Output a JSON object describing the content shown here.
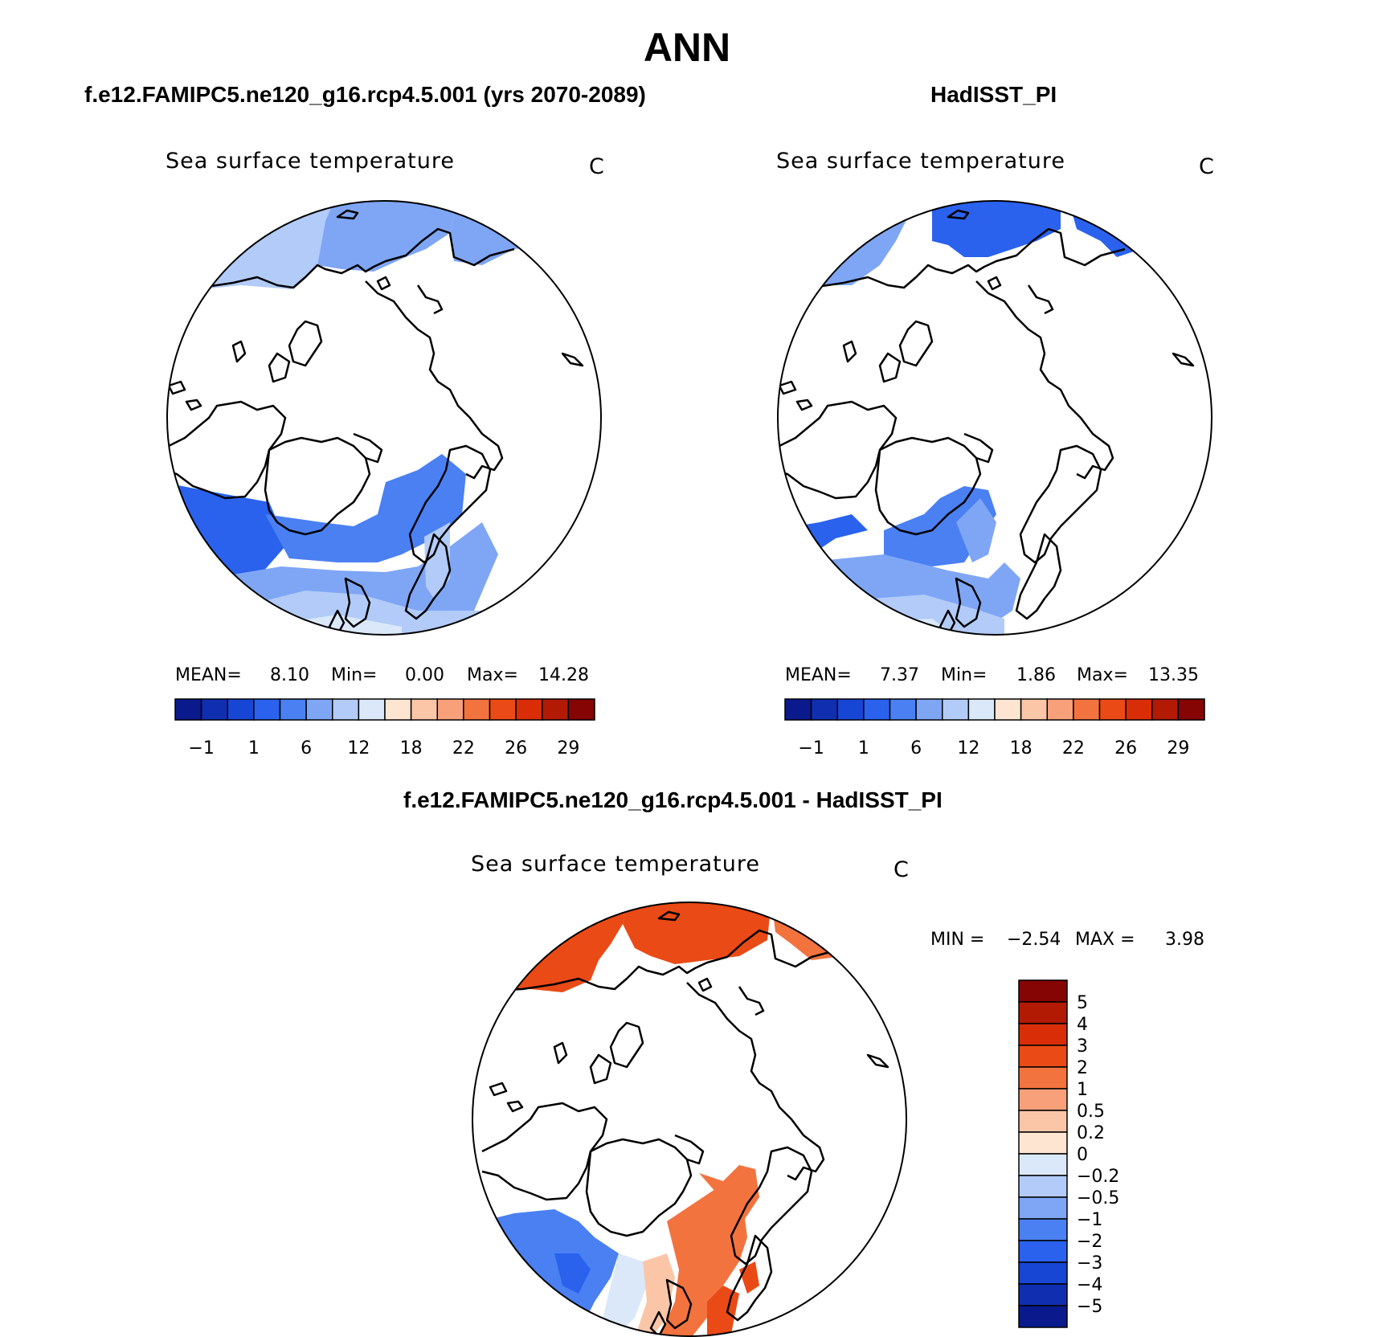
{
  "main_title": "ANN",
  "chart_data": [
    {
      "type": "heatmap",
      "title": "f.e12.FAMIPC5.ne120_g16.rcp4.5.001 (yrs 2070-2089)",
      "variable": "Sea surface temperature",
      "units": "C",
      "projection": "north polar stereographic",
      "stats": {
        "mean_label": "MEAN=",
        "mean": "8.10",
        "min_label": "Min=",
        "min": "0.00",
        "max_label": "Max=",
        "max": "14.28"
      },
      "colorbar": {
        "orientation": "horizontal",
        "tick_labels": [
          "−1",
          "1",
          "6",
          "12",
          "18",
          "22",
          "26",
          "29"
        ],
        "colors": [
          "#0a1a8c",
          "#0f2fb0",
          "#1746d4",
          "#2a62ee",
          "#4a80f2",
          "#7fa6f5",
          "#b2cbf8",
          "#dbe8fa",
          "#fde5d2",
          "#fbc6a7",
          "#f8a07a",
          "#f3733f",
          "#ea4a15",
          "#d82d06",
          "#b21a04",
          "#850404"
        ]
      }
    },
    {
      "type": "heatmap",
      "title": "HadISST_PI",
      "variable": "Sea surface temperature",
      "units": "C",
      "projection": "north polar stereographic",
      "stats": {
        "mean_label": "MEAN=",
        "mean": "7.37",
        "min_label": "Min=",
        "min": "1.86",
        "max_label": "Max=",
        "max": "13.35"
      },
      "colorbar": {
        "orientation": "horizontal",
        "tick_labels": [
          "−1",
          "1",
          "6",
          "12",
          "18",
          "22",
          "26",
          "29"
        ],
        "colors": [
          "#0a1a8c",
          "#0f2fb0",
          "#1746d4",
          "#2a62ee",
          "#4a80f2",
          "#7fa6f5",
          "#b2cbf8",
          "#dbe8fa",
          "#fde5d2",
          "#fbc6a7",
          "#f8a07a",
          "#f3733f",
          "#ea4a15",
          "#d82d06",
          "#b21a04",
          "#850404"
        ]
      }
    },
    {
      "type": "heatmap",
      "title": "f.e12.FAMIPC5.ne120_g16.rcp4.5.001 - HadISST_PI",
      "variable": "Sea surface temperature",
      "units": "C",
      "projection": "north polar stereographic",
      "stats": {
        "min_label": "MIN =",
        "min": "−2.54",
        "max_label": "MAX =",
        "max": "3.98"
      },
      "colorbar": {
        "orientation": "vertical",
        "tick_labels": [
          "5",
          "4",
          "3",
          "2",
          "1",
          "0.5",
          "0.2",
          "0",
          "−0.2",
          "−0.5",
          "−1",
          "−2",
          "−3",
          "−4",
          "−5"
        ],
        "colors": [
          "#850404",
          "#b21a04",
          "#d82d06",
          "#ea4a15",
          "#f3733f",
          "#f8a07a",
          "#fbc6a7",
          "#fde5d2",
          "#dbe8fa",
          "#b2cbf8",
          "#7fa6f5",
          "#4a80f2",
          "#2a62ee",
          "#1746d4",
          "#0f2fb0",
          "#0a1a8c"
        ]
      }
    }
  ]
}
